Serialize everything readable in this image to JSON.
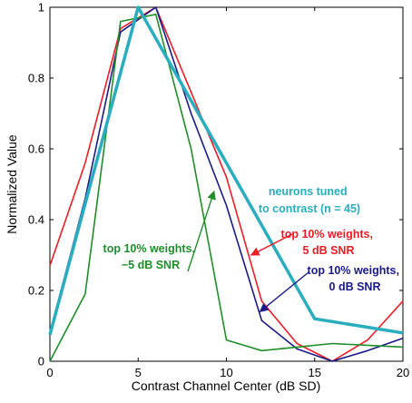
{
  "chart_data": {
    "type": "line",
    "xlabel": "Contrast Channel Center (dB SD)",
    "ylabel": "Normalized Value",
    "xlim": [
      0,
      20
    ],
    "ylim": [
      0,
      1
    ],
    "xticks": [
      0,
      5,
      10,
      15,
      20
    ],
    "yticks": [
      0,
      0.2,
      0.4,
      0.6,
      0.8,
      1
    ],
    "xtick_labels": [
      "0",
      "5",
      "10",
      "15",
      "20"
    ],
    "ytick_labels": [
      "0",
      "0.2",
      "0.4",
      "0.6",
      "0.8",
      "1"
    ],
    "grid": false,
    "series": [
      {
        "color": "#2aaebf",
        "x": [
          0,
          5,
          15,
          20
        ],
        "y": [
          0.075,
          1.0,
          0.12,
          0.08
        ]
      },
      {
        "color": "#ee1c25",
        "x": [
          0,
          2,
          4,
          6,
          8,
          10,
          12,
          14,
          16,
          18,
          20
        ],
        "y": [
          0.27,
          0.56,
          0.94,
          1.0,
          0.76,
          0.52,
          0.17,
          0.05,
          0.0,
          0.06,
          0.17
        ]
      },
      {
        "color": "#1a1a8a",
        "x": [
          0,
          2,
          4,
          6,
          8,
          10,
          12,
          14,
          16,
          18,
          20
        ],
        "y": [
          0.08,
          0.46,
          0.93,
          1.0,
          0.7,
          0.44,
          0.115,
          0.035,
          0.0,
          0.03,
          0.065
        ]
      },
      {
        "color": "#1f8e2a",
        "x": [
          0,
          2,
          4,
          6,
          8,
          10,
          12,
          14,
          16,
          18,
          20
        ],
        "y": [
          0.0,
          0.19,
          0.96,
          0.98,
          0.6,
          0.06,
          0.03,
          0.04,
          0.05,
          0.045,
          0.04
        ]
      }
    ],
    "annotations": [
      {
        "lines": [
          "neurons tuned",
          "to contrast (n = 45)"
        ],
        "color": "#2aaebf"
      },
      {
        "lines": [
          "top 10% weights,",
          "5 dB SNR"
        ],
        "color": "#ee1c25"
      },
      {
        "lines": [
          "top 10% weights,",
          "0 dB SNR"
        ],
        "color": "#1a1a8a"
      },
      {
        "lines": [
          "top 10% weights,",
          "−5 dB SNR"
        ],
        "color": "#1f8e2a"
      }
    ]
  }
}
